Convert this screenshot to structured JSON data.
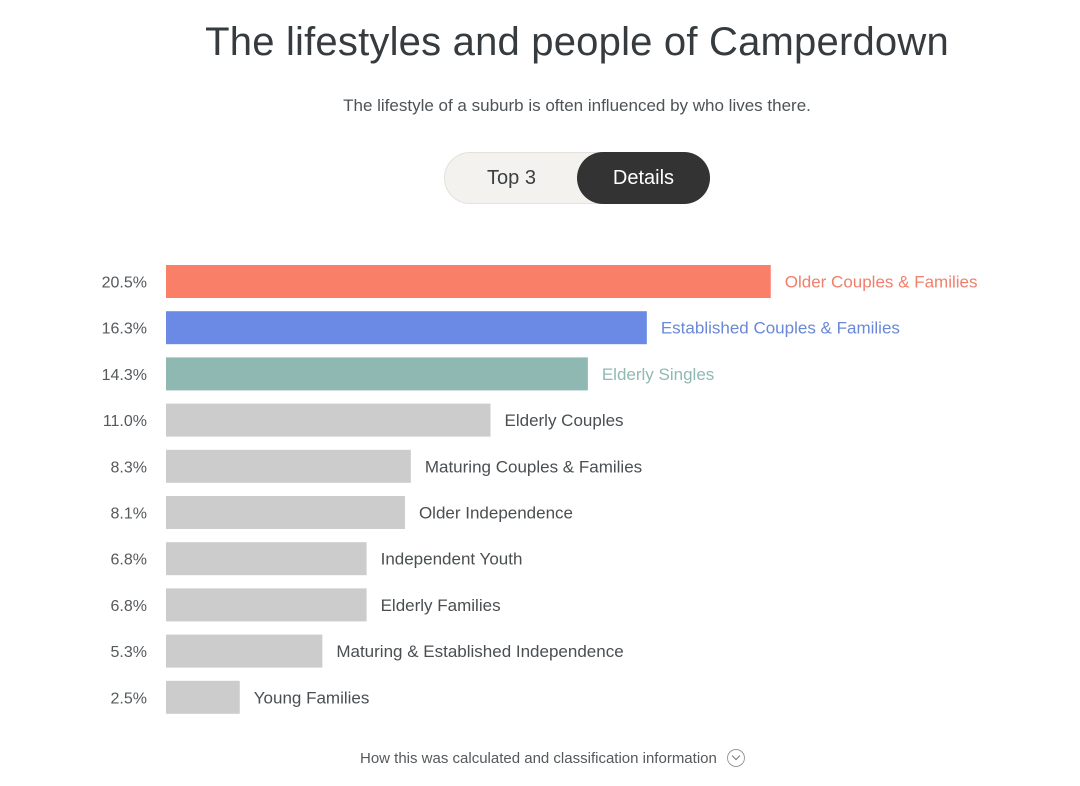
{
  "title": "The lifestyles and people of Camperdown",
  "subtitle": "The lifestyle of a suburb is often influenced by who lives there.",
  "toggle": {
    "options": [
      "Top 3",
      "Details"
    ],
    "selected": "Details"
  },
  "footer": {
    "link_text": "How this was calculated and classification information",
    "icon": "chevron-down-icon"
  },
  "chart_data": {
    "type": "bar",
    "orientation": "horizontal",
    "categories": [
      "Older Couples & Families",
      "Established Couples & Families",
      "Elderly Singles",
      "Elderly Couples",
      "Maturing Couples & Families",
      "Older Independence",
      "Independent Youth",
      "Elderly Families",
      "Maturing & Established Independence",
      "Young Families"
    ],
    "values": [
      20.5,
      16.3,
      14.3,
      11.0,
      8.3,
      8.1,
      6.8,
      6.8,
      5.3,
      2.5
    ],
    "value_labels": [
      "20.5%",
      "16.3%",
      "14.3%",
      "11.0%",
      "8.3%",
      "8.1%",
      "6.8%",
      "6.8%",
      "5.3%",
      "2.5%"
    ],
    "unit": "%",
    "bar_colors": [
      "#fa7f69",
      "#6a8ae6",
      "#8eb8b1",
      "#cccccc",
      "#cccccc",
      "#cccccc",
      "#cccccc",
      "#cccccc",
      "#cccccc",
      "#cccccc"
    ],
    "label_colors": [
      "#f07f6c",
      "#6a88d8",
      "#8ebab3",
      "#4a4f52",
      "#4a4f52",
      "#4a4f52",
      "#4a4f52",
      "#4a4f52",
      "#4a4f52",
      "#4a4f52"
    ],
    "grid": false,
    "legend": "none"
  }
}
